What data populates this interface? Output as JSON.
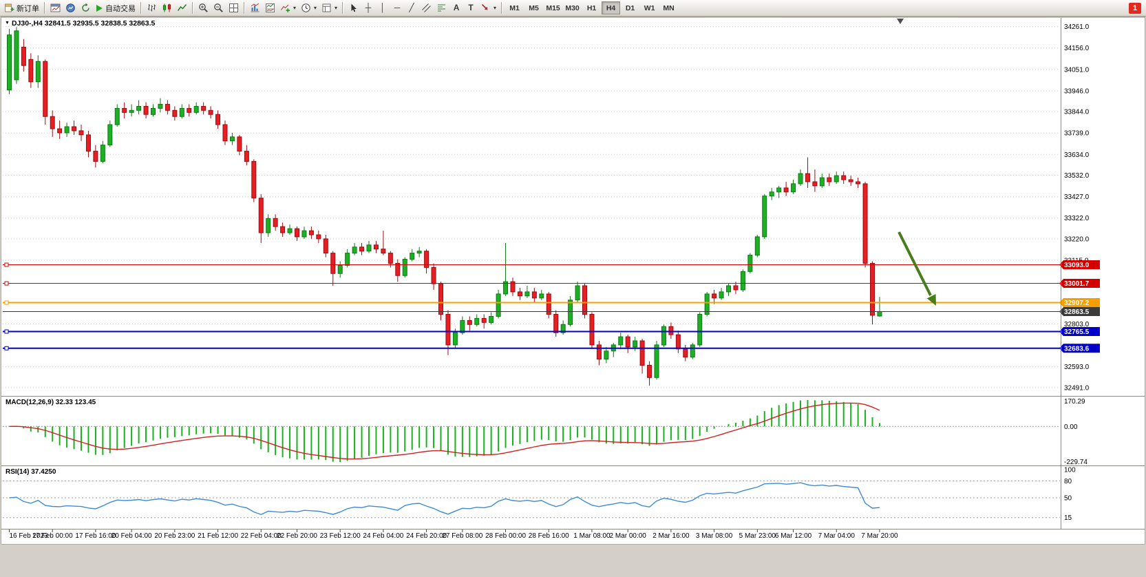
{
  "toolbar": {
    "new_order_label": "新订单",
    "auto_trading_label": "自动交易",
    "timeframes": [
      "M1",
      "M5",
      "M15",
      "M30",
      "H1",
      "H4",
      "D1",
      "W1",
      "MN"
    ],
    "active_timeframe": "H4",
    "notification_badge": "1",
    "icons": [
      "new-order-icon",
      "charts-icon",
      "market-watch-icon",
      "navigator-icon",
      "auto-trading-icon",
      "bars-chart-icon",
      "candles-chart-icon",
      "line-chart-icon",
      "zoom-in-icon",
      "zoom-out-icon",
      "tile-windows-icon",
      "indicators-icon",
      "indicator-windows-icon",
      "add-indicator-icon",
      "periods-icon",
      "templates-icon",
      "cursor-icon",
      "crosshair-icon",
      "vertical-line-icon",
      "horizontal-line-icon",
      "trendline-icon",
      "channel-icon",
      "fibonacci-icon",
      "text-icon",
      "label-icon",
      "arrows-icon"
    ]
  },
  "chart": {
    "title": "DJ30-,H4 32841.5 32935.5 32838.5 32863.5",
    "symbol": "DJ30-",
    "period": "H4",
    "last_open": "32841.5",
    "last_high": "32935.5",
    "last_low": "32838.5",
    "last_close": "32863.5"
  },
  "price_axis": {
    "ticks": [
      "34261.0",
      "34156.0",
      "34051.0",
      "33946.0",
      "33844.0",
      "33739.0",
      "33634.0",
      "33532.0",
      "33427.0",
      "33322.0",
      "33220.0",
      "33115.0",
      "32803.0",
      "32593.0",
      "32491.0"
    ]
  },
  "levels": [
    {
      "label": "33093.0",
      "value": 33093.0,
      "color": "#d40000",
      "width": 1,
      "handle": true
    },
    {
      "label": "33001.7",
      "value": 33001.7,
      "color": "#d40000",
      "width": 1,
      "handle": true
    },
    {
      "label": "32907.2",
      "value": 32907.2,
      "color": "#f5a000",
      "width": 2,
      "handle": true
    },
    {
      "label": "32863.5",
      "value": 32863.5,
      "color": "#3a3a3a",
      "width": 1,
      "handle": false
    },
    {
      "label": "32765.5",
      "value": 32765.5,
      "color": "#0000c8",
      "width": 2,
      "handle": true
    },
    {
      "label": "32683.6",
      "value": 32683.6,
      "color": "#0000c8",
      "width": 2,
      "handle": true
    }
  ],
  "indicators": {
    "macd": {
      "name": "MACD(12,26,9)",
      "value_main": "32.33",
      "value_signal": "123.45",
      "display": "MACD(12,26,9) 32.33 123.45",
      "axis": [
        "170.29",
        "0.00",
        "-229.74"
      ]
    },
    "rsi": {
      "name": "RSI(14)",
      "value": "37.4250",
      "display": "RSI(14) 37.4250",
      "axis": [
        "100",
        "80",
        "50",
        "15"
      ],
      "levels": [
        80,
        50,
        15
      ]
    }
  },
  "chart_data": {
    "type": "candlestick",
    "title": "DJ30-,H4",
    "symbol": "DJ30-",
    "timeframe": "H4",
    "ylim": [
      32491,
      34261
    ],
    "values_format": "[open,high,low,close]",
    "x_labels": [
      "16 Feb 2023",
      "17 Feb 00:00",
      "17 Feb 16:00",
      "20 Feb 04:00",
      "20 Feb 23:00",
      "21 Feb 12:00",
      "22 Feb 04:00",
      "22 Feb 20:00",
      "23 Feb 12:00",
      "24 Feb 04:00",
      "24 Feb 20:00",
      "27 Feb 08:00",
      "28 Feb 00:00",
      "28 Feb 16:00",
      "1 Mar 08:00",
      "2 Mar 00:00",
      "2 Mar 16:00",
      "3 Mar 08:00",
      "5 Mar 23:00",
      "6 Mar 12:00",
      "7 Mar 04:00",
      "7 Mar 20:00"
    ],
    "candles": [
      [
        33950,
        34250,
        33930,
        34220
      ],
      [
        34000,
        34258,
        33980,
        34240
      ],
      [
        34160,
        34200,
        34040,
        34070
      ],
      [
        34100,
        34130,
        33960,
        33990
      ],
      [
        33990,
        34120,
        33960,
        34090
      ],
      [
        34090,
        34100,
        33780,
        33820
      ],
      [
        33820,
        33850,
        33720,
        33760
      ],
      [
        33760,
        33800,
        33710,
        33740
      ],
      [
        33740,
        33790,
        33720,
        33770
      ],
      [
        33770,
        33800,
        33730,
        33750
      ],
      [
        33750,
        33780,
        33700,
        33730
      ],
      [
        33730,
        33750,
        33620,
        33650
      ],
      [
        33650,
        33680,
        33570,
        33600
      ],
      [
        33600,
        33700,
        33590,
        33680
      ],
      [
        33680,
        33800,
        33670,
        33780
      ],
      [
        33780,
        33880,
        33770,
        33860
      ],
      [
        33860,
        33890,
        33810,
        33840
      ],
      [
        33840,
        33880,
        33820,
        33850
      ],
      [
        33850,
        33900,
        33830,
        33870
      ],
      [
        33870,
        33890,
        33810,
        33830
      ],
      [
        33830,
        33880,
        33820,
        33860
      ],
      [
        33860,
        33910,
        33840,
        33880
      ],
      [
        33880,
        33900,
        33830,
        33850
      ],
      [
        33850,
        33870,
        33800,
        33820
      ],
      [
        33820,
        33880,
        33810,
        33860
      ],
      [
        33860,
        33880,
        33820,
        33840
      ],
      [
        33840,
        33890,
        33830,
        33870
      ],
      [
        33870,
        33890,
        33830,
        33850
      ],
      [
        33850,
        33870,
        33810,
        33830
      ],
      [
        33830,
        33850,
        33760,
        33780
      ],
      [
        33780,
        33800,
        33680,
        33700
      ],
      [
        33700,
        33740,
        33680,
        33720
      ],
      [
        33720,
        33730,
        33630,
        33650
      ],
      [
        33650,
        33680,
        33580,
        33600
      ],
      [
        33600,
        33610,
        33400,
        33420
      ],
      [
        33420,
        33440,
        33200,
        33250
      ],
      [
        33250,
        33340,
        33230,
        33320
      ],
      [
        33320,
        33340,
        33260,
        33280
      ],
      [
        33280,
        33300,
        33230,
        33250
      ],
      [
        33250,
        33290,
        33240,
        33270
      ],
      [
        33270,
        33280,
        33210,
        33230
      ],
      [
        33230,
        33280,
        33220,
        33260
      ],
      [
        33260,
        33280,
        33220,
        33240
      ],
      [
        33240,
        33260,
        33200,
        33220
      ],
      [
        33220,
        33240,
        33130,
        33150
      ],
      [
        33150,
        33160,
        32990,
        33050
      ],
      [
        33050,
        33110,
        33030,
        33090
      ],
      [
        33090,
        33170,
        33080,
        33150
      ],
      [
        33150,
        33200,
        33140,
        33180
      ],
      [
        33180,
        33200,
        33140,
        33160
      ],
      [
        33160,
        33210,
        33150,
        33190
      ],
      [
        33190,
        33210,
        33150,
        33170
      ],
      [
        33170,
        33260,
        33140,
        33150
      ],
      [
        33150,
        33160,
        33080,
        33100
      ],
      [
        33100,
        33120,
        33010,
        33040
      ],
      [
        33040,
        33130,
        33030,
        33120
      ],
      [
        33120,
        33170,
        33110,
        33150
      ],
      [
        33150,
        33180,
        33130,
        33160
      ],
      [
        33160,
        33170,
        33050,
        33080
      ],
      [
        33080,
        33100,
        32970,
        33000
      ],
      [
        33000,
        33010,
        32820,
        32850
      ],
      [
        32850,
        32870,
        32650,
        32700
      ],
      [
        32700,
        32780,
        32680,
        32760
      ],
      [
        32760,
        32840,
        32750,
        32820
      ],
      [
        32820,
        32840,
        32770,
        32800
      ],
      [
        32800,
        32850,
        32790,
        32830
      ],
      [
        32830,
        32850,
        32780,
        32810
      ],
      [
        32810,
        32860,
        32800,
        32840
      ],
      [
        32840,
        32970,
        32830,
        32950
      ],
      [
        32950,
        33200,
        32940,
        33010
      ],
      [
        33010,
        33030,
        32940,
        32960
      ],
      [
        32960,
        32980,
        32920,
        32940
      ],
      [
        32940,
        32990,
        32930,
        32960
      ],
      [
        32960,
        32980,
        32910,
        32930
      ],
      [
        32930,
        32970,
        32920,
        32950
      ],
      [
        32950,
        32960,
        32830,
        32850
      ],
      [
        32850,
        32870,
        32740,
        32760
      ],
      [
        32760,
        32820,
        32750,
        32800
      ],
      [
        32800,
        32940,
        32790,
        32920
      ],
      [
        32920,
        33010,
        32910,
        32990
      ],
      [
        32990,
        33000,
        32830,
        32850
      ],
      [
        32850,
        32860,
        32680,
        32700
      ],
      [
        32700,
        32720,
        32600,
        32630
      ],
      [
        32630,
        32690,
        32610,
        32670
      ],
      [
        32670,
        32710,
        32640,
        32700
      ],
      [
        32700,
        32760,
        32680,
        32740
      ],
      [
        32740,
        32750,
        32660,
        32690
      ],
      [
        32690,
        32740,
        32670,
        32720
      ],
      [
        32720,
        32730,
        32560,
        32600
      ],
      [
        32600,
        32620,
        32500,
        32540
      ],
      [
        32540,
        32720,
        32530,
        32700
      ],
      [
        32700,
        32800,
        32690,
        32790
      ],
      [
        32790,
        32810,
        32730,
        32750
      ],
      [
        32750,
        32770,
        32660,
        32680
      ],
      [
        32680,
        32700,
        32620,
        32640
      ],
      [
        32640,
        32710,
        32630,
        32700
      ],
      [
        32700,
        32860,
        32690,
        32850
      ],
      [
        32850,
        32960,
        32840,
        32950
      ],
      [
        32950,
        32970,
        32900,
        32930
      ],
      [
        32930,
        32980,
        32920,
        32960
      ],
      [
        32960,
        33000,
        32940,
        32990
      ],
      [
        32990,
        33010,
        32950,
        32970
      ],
      [
        32970,
        33070,
        32960,
        33060
      ],
      [
        33060,
        33150,
        33050,
        33140
      ],
      [
        33140,
        33240,
        33130,
        33230
      ],
      [
        33230,
        33440,
        33220,
        33430
      ],
      [
        33430,
        33470,
        33410,
        33450
      ],
      [
        33450,
        33480,
        33420,
        33470
      ],
      [
        33470,
        33500,
        33430,
        33450
      ],
      [
        33450,
        33510,
        33440,
        33490
      ],
      [
        33490,
        33560,
        33480,
        33540
      ],
      [
        33540,
        33620,
        33470,
        33500
      ],
      [
        33500,
        33560,
        33450,
        33480
      ],
      [
        33480,
        33540,
        33470,
        33520
      ],
      [
        33520,
        33540,
        33480,
        33500
      ],
      [
        33500,
        33550,
        33490,
        33530
      ],
      [
        33530,
        33550,
        33490,
        33510
      ],
      [
        33510,
        33530,
        33480,
        33500
      ],
      [
        33500,
        33520,
        33470,
        33490
      ],
      [
        33490,
        33500,
        33080,
        33100
      ],
      [
        33100,
        33110,
        32800,
        32845
      ],
      [
        32841.5,
        32935.5,
        32838.5,
        32863.5
      ]
    ],
    "annotation": {
      "type": "arrow",
      "direction": "down-right",
      "color": "#477d1b"
    }
  },
  "colors": {
    "bull": "#1db024",
    "bull_border": "#0c7a12",
    "bear": "#e51f24",
    "bear_border": "#9e0b0f",
    "macd_hist": "#18b31c",
    "macd_signal": "#d02020",
    "rsi_line": "#3d8bd4",
    "grid": "#c9c9c9",
    "arrow": "#477d1b"
  }
}
